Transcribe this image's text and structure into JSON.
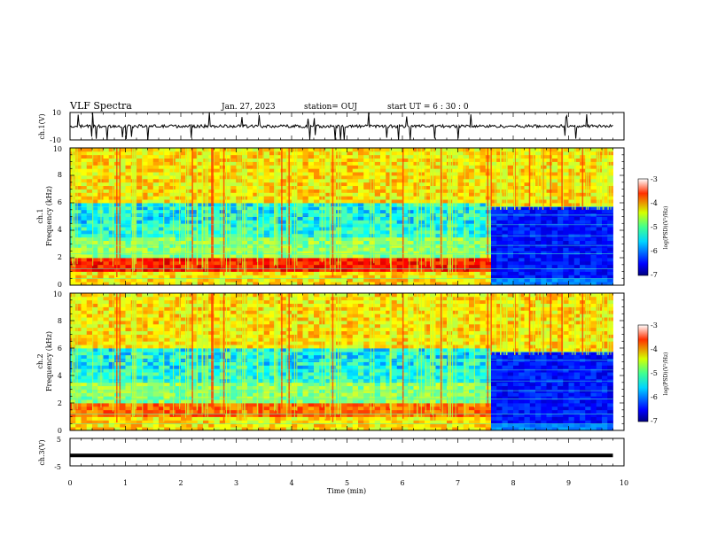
{
  "header": {
    "title": "VLF Spectra",
    "date": "Jan. 27, 2023",
    "station": "station= OUJ",
    "start": "start UT =  6 : 30 : 0"
  },
  "chart_data": [
    {
      "type": "line",
      "ylabel": "ch.1(V)",
      "ylim": [
        -10,
        10
      ],
      "yticklabels": [
        "-10",
        "10"
      ],
      "xlim": [
        0,
        10
      ],
      "signal_level": 0,
      "baseline_style": "noisy trace near 0 V with occasional negative spikes"
    },
    {
      "type": "heatmap",
      "ylabel": "ch.1\nFrequency  (kHz)",
      "ylim": [
        0,
        10
      ],
      "yticklabels": [
        "0",
        "2",
        "4",
        "6",
        "8",
        "10"
      ],
      "xlim": [
        0,
        10
      ],
      "data_end_min": 9.8,
      "transition_min": 7.6,
      "colorbar": {
        "label": "log(PSD)(V²/Hz)",
        "range": [
          -7,
          -3
        ],
        "ticklabels": [
          "-3",
          "-4",
          "-5",
          "-6",
          "-7"
        ]
      }
    },
    {
      "type": "heatmap",
      "ylabel": "ch.2\nFrequency  (kHz)",
      "ylim": [
        0,
        10
      ],
      "yticklabels": [
        "0",
        "2",
        "4",
        "6",
        "8",
        "10"
      ],
      "xlim": [
        0,
        10
      ],
      "data_end_min": 9.8,
      "transition_min": 7.6,
      "colorbar": {
        "label": "log(PSD)(V²/Hz)",
        "range": [
          -7,
          -3
        ],
        "ticklabels": [
          "-3",
          "-4",
          "-5",
          "-6",
          "-7"
        ]
      }
    },
    {
      "type": "line",
      "ylabel": "ch.3(V)",
      "ylim": [
        -5,
        5
      ],
      "yticklabels": [
        "-5",
        "5"
      ],
      "xlim": [
        0,
        10
      ],
      "signal_level": -1.2,
      "xlabel": "Time  (min)",
      "xticklabels": [
        "0",
        "1",
        "2",
        "3",
        "4",
        "5",
        "6",
        "7",
        "8",
        "9",
        "10"
      ]
    }
  ]
}
